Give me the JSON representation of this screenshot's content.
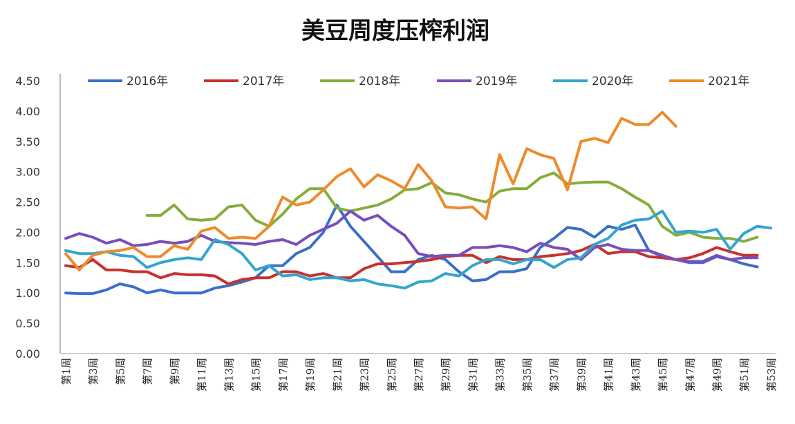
{
  "chart_data": {
    "type": "line",
    "title": "美豆周度压榨利润",
    "xlabel": "",
    "ylabel": "",
    "ylim": [
      0,
      4.5
    ],
    "yticks": [
      "0.00",
      "0.50",
      "1.00",
      "1.50",
      "2.00",
      "2.50",
      "3.00",
      "3.50",
      "4.00",
      "4.50"
    ],
    "grid": false,
    "legend_position": "top",
    "x_tick_labels": [
      "第1周",
      "第3周",
      "第5周",
      "第7周",
      "第9周",
      "第11周",
      "第13周",
      "第15周",
      "第17周",
      "第19周",
      "第21周",
      "第23周",
      "第25周",
      "第27周",
      "第29周",
      "第31周",
      "第33周",
      "第35周",
      "第37周",
      "第39周",
      "第41周",
      "第43周",
      "第45周",
      "第47周",
      "第49周",
      "第51周",
      "第53周"
    ],
    "weeks": 53,
    "series": [
      {
        "name": "2016年",
        "color": "#3a6fcb",
        "values": [
          1.0,
          0.99,
          0.99,
          1.05,
          1.15,
          1.1,
          1.0,
          1.05,
          1.0,
          1.0,
          1.0,
          1.08,
          1.12,
          1.18,
          1.25,
          1.45,
          1.45,
          1.65,
          1.75,
          2.0,
          2.45,
          2.1,
          1.85,
          1.6,
          1.35,
          1.35,
          1.55,
          1.62,
          1.55,
          1.35,
          1.2,
          1.22,
          1.35,
          1.35,
          1.4,
          1.75,
          1.9,
          2.08,
          2.05,
          1.92,
          2.1,
          2.05,
          2.12,
          1.7,
          1.6,
          1.55,
          1.5,
          1.5,
          1.6,
          1.55,
          1.48,
          1.43,
          null
        ]
      },
      {
        "name": "2017年",
        "color": "#c8312e",
        "values": [
          1.45,
          1.42,
          1.55,
          1.38,
          1.38,
          1.35,
          1.35,
          1.25,
          1.32,
          1.3,
          1.3,
          1.28,
          1.15,
          1.22,
          1.25,
          1.25,
          1.35,
          1.35,
          1.28,
          1.32,
          1.25,
          1.25,
          1.4,
          1.48,
          1.48,
          1.5,
          1.52,
          1.55,
          1.6,
          1.62,
          1.62,
          1.5,
          1.6,
          1.55,
          1.55,
          1.6,
          1.62,
          1.65,
          1.7,
          1.8,
          1.65,
          1.68,
          1.68,
          1.6,
          1.58,
          1.55,
          1.58,
          1.65,
          1.75,
          1.68,
          1.62,
          1.62,
          null
        ]
      },
      {
        "name": "2018年",
        "color": "#86ad3c",
        "values": [
          null,
          null,
          null,
          null,
          null,
          null,
          2.28,
          2.28,
          2.45,
          2.22,
          2.2,
          2.22,
          2.42,
          2.45,
          2.2,
          2.1,
          2.3,
          2.55,
          2.72,
          2.72,
          2.4,
          2.35,
          2.4,
          2.45,
          2.55,
          2.7,
          2.72,
          2.82,
          2.65,
          2.62,
          2.55,
          2.5,
          2.68,
          2.72,
          2.72,
          2.9,
          2.98,
          2.8,
          2.82,
          2.83,
          2.83,
          2.72,
          2.58,
          2.45,
          2.1,
          1.95,
          2.0,
          1.92,
          1.9,
          1.9,
          1.85,
          1.92,
          null
        ]
      },
      {
        "name": "2019年",
        "color": "#7a4dbb",
        "values": [
          1.9,
          1.98,
          1.92,
          1.82,
          1.88,
          1.78,
          1.8,
          1.85,
          1.82,
          1.85,
          1.95,
          1.85,
          1.83,
          1.82,
          1.8,
          1.85,
          1.88,
          1.8,
          1.95,
          2.05,
          2.15,
          2.35,
          2.2,
          2.28,
          2.1,
          1.95,
          1.65,
          1.6,
          1.62,
          1.62,
          1.75,
          1.75,
          1.78,
          1.75,
          1.68,
          1.82,
          1.75,
          1.72,
          1.55,
          1.75,
          1.8,
          1.72,
          1.7,
          1.7,
          1.62,
          1.55,
          1.52,
          1.52,
          1.62,
          1.55,
          1.58,
          1.58,
          null
        ]
      },
      {
        "name": "2020年",
        "color": "#34a5cf",
        "values": [
          1.7,
          1.65,
          1.65,
          1.68,
          1.62,
          1.6,
          1.42,
          1.5,
          1.55,
          1.58,
          1.55,
          1.88,
          1.8,
          1.65,
          1.38,
          1.45,
          1.28,
          1.3,
          1.22,
          1.25,
          1.25,
          1.2,
          1.22,
          1.15,
          1.12,
          1.08,
          1.18,
          1.2,
          1.32,
          1.28,
          1.45,
          1.55,
          1.55,
          1.48,
          1.55,
          1.55,
          1.42,
          1.55,
          1.58,
          1.8,
          1.9,
          2.12,
          2.2,
          2.22,
          2.35,
          2.0,
          2.02,
          2.0,
          2.05,
          1.72,
          1.98,
          2.1,
          2.07
        ]
      },
      {
        "name": "2021年",
        "color": "#ef8a2a",
        "values": [
          1.65,
          1.38,
          1.62,
          1.68,
          1.7,
          1.75,
          1.6,
          1.6,
          1.78,
          1.72,
          2.02,
          2.08,
          1.9,
          1.92,
          1.9,
          2.1,
          2.58,
          2.45,
          2.5,
          2.7,
          2.92,
          3.05,
          2.75,
          2.95,
          2.85,
          2.72,
          3.12,
          2.85,
          2.42,
          2.4,
          2.42,
          2.22,
          3.28,
          2.8,
          3.38,
          3.28,
          3.22,
          2.7,
          3.5,
          3.55,
          3.48,
          3.88,
          3.78,
          3.78,
          3.98,
          3.75,
          null,
          null,
          null,
          null,
          null,
          null,
          null
        ]
      }
    ]
  }
}
